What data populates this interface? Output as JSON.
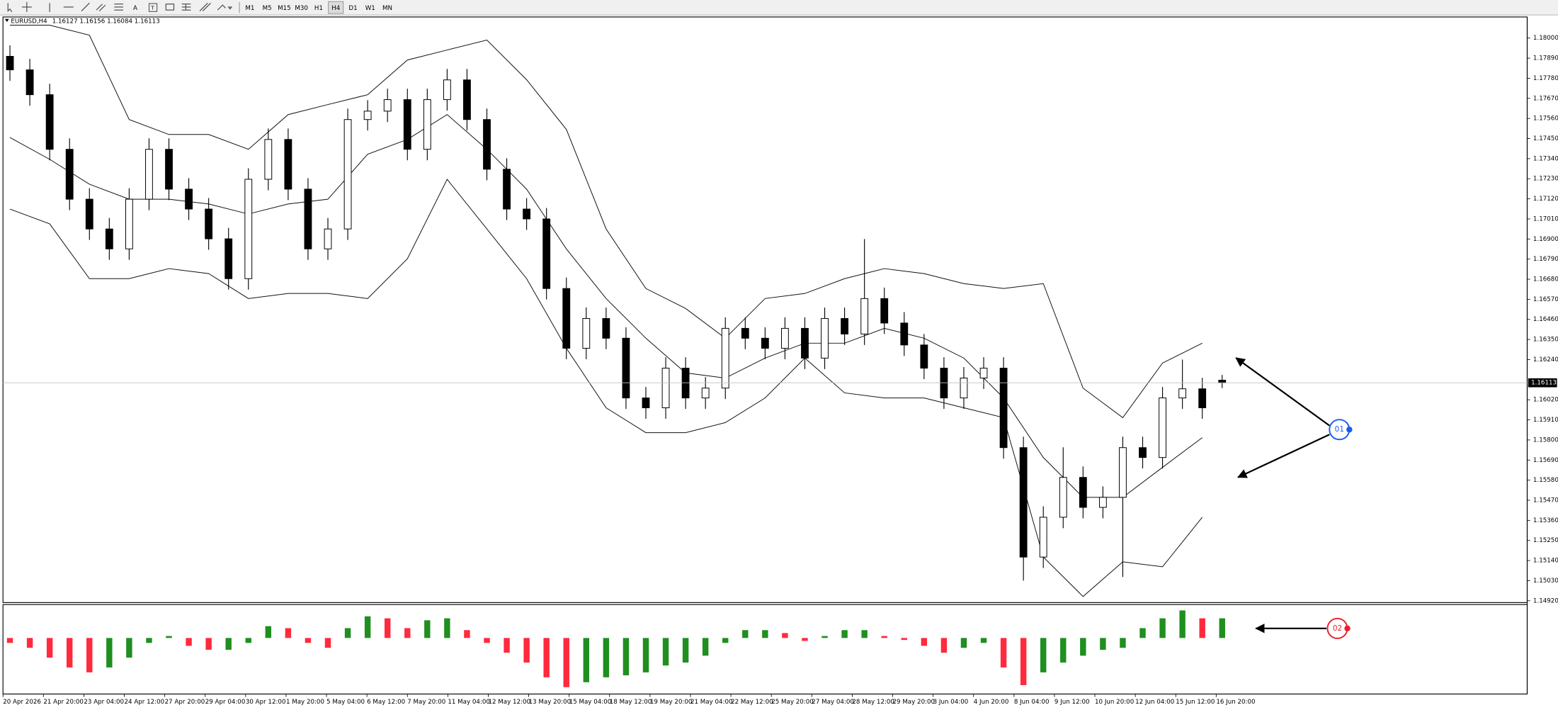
{
  "toolbar": {
    "timeframes": [
      "M1",
      "M5",
      "M15",
      "M30",
      "H1",
      "H4",
      "D1",
      "W1",
      "MN"
    ],
    "active": "H4"
  },
  "chart_data": [
    {
      "type": "candlestick",
      "title": "EURUSD,H4",
      "open": [
        1.179,
        1.17826,
        1.1769,
        1.17391,
        1.17118,
        1.16955,
        1.16846,
        1.17118,
        1.17391,
        1.17173,
        1.17064,
        1.16901,
        1.16683,
        1.17227,
        1.17445,
        1.17173,
        1.16846,
        1.16955,
        1.17554,
        1.176,
        1.17663,
        1.17391,
        1.17663,
        1.17771,
        1.17554,
        1.17282,
        1.17064,
        1.1701,
        1.16629,
        1.16302,
        1.16465,
        1.16357,
        1.1603,
        1.15976,
        1.16193,
        1.1603,
        1.16084,
        1.16411,
        1.16357,
        1.16302,
        1.16411,
        1.16248,
        1.16465,
        1.1638,
        1.16574,
        1.1644,
        1.1632,
        1.16193,
        1.1603,
        1.16139,
        1.16193,
        1.15758,
        1.15159,
        1.15377,
        1.15595,
        1.15431,
        1.15486,
        1.15758,
        1.15704,
        1.1603,
        1.1608,
        1.16127
      ],
      "high": [
        1.1796,
        1.17886,
        1.1775,
        1.17451,
        1.17178,
        1.17015,
        1.17178,
        1.17451,
        1.17451,
        1.17233,
        1.17124,
        1.16961,
        1.17287,
        1.17505,
        1.17505,
        1.17233,
        1.17015,
        1.17614,
        1.1766,
        1.17723,
        1.17723,
        1.17723,
        1.17831,
        1.17831,
        1.17614,
        1.17342,
        1.17124,
        1.1707,
        1.16689,
        1.16525,
        1.16525,
        1.16417,
        1.1609,
        1.16253,
        1.16253,
        1.16144,
        1.16471,
        1.16471,
        1.16417,
        1.16471,
        1.16471,
        1.16525,
        1.16525,
        1.169,
        1.16634,
        1.165,
        1.1638,
        1.16253,
        1.16199,
        1.16253,
        1.16253,
        1.15818,
        1.15437,
        1.1576,
        1.15655,
        1.15546,
        1.15818,
        1.15818,
        1.1609,
        1.1624,
        1.1614,
        1.16156
      ],
      "low": [
        1.17766,
        1.1763,
        1.17331,
        1.17058,
        1.16895,
        1.16786,
        1.16786,
        1.17058,
        1.17113,
        1.17004,
        1.16841,
        1.16623,
        1.16623,
        1.17167,
        1.17113,
        1.16786,
        1.16786,
        1.16895,
        1.17494,
        1.1754,
        1.17331,
        1.17331,
        1.17603,
        1.17494,
        1.17222,
        1.17004,
        1.1695,
        1.16569,
        1.16242,
        1.16242,
        1.16297,
        1.1597,
        1.15916,
        1.15916,
        1.1597,
        1.1597,
        1.16024,
        1.16297,
        1.16242,
        1.16242,
        1.16188,
        1.16188,
        1.1632,
        1.1632,
        1.1638,
        1.1626,
        1.16133,
        1.1597,
        1.1597,
        1.16079,
        1.15698,
        1.1503,
        1.15099,
        1.15317,
        1.15371,
        1.15371,
        1.1505,
        1.15644,
        1.15644,
        1.1597,
        1.15916,
        1.16084
      ],
      "close": [
        1.17826,
        1.1769,
        1.17391,
        1.17118,
        1.16955,
        1.16846,
        1.17118,
        1.17391,
        1.17173,
        1.17064,
        1.16901,
        1.16683,
        1.17227,
        1.17445,
        1.17173,
        1.16846,
        1.16955,
        1.17554,
        1.176,
        1.17663,
        1.17391,
        1.17663,
        1.17771,
        1.17554,
        1.17282,
        1.17064,
        1.1701,
        1.16629,
        1.16302,
        1.16465,
        1.16357,
        1.1603,
        1.15976,
        1.16193,
        1.1603,
        1.16084,
        1.16411,
        1.16357,
        1.16302,
        1.16411,
        1.16248,
        1.16465,
        1.1638,
        1.16574,
        1.1644,
        1.1632,
        1.16193,
        1.1603,
        1.16139,
        1.16193,
        1.15758,
        1.15159,
        1.15377,
        1.15595,
        1.15431,
        1.15486,
        1.15758,
        1.15704,
        1.1603,
        1.1608,
        1.15976,
        1.16113
      ],
      "bands": {
        "upper": [
          1.18071,
          1.18071,
          1.18016,
          1.17554,
          1.17472,
          1.17472,
          1.17391,
          1.17581,
          1.17636,
          1.1769,
          1.1788,
          1.17935,
          1.17989,
          1.17772,
          1.175,
          1.16955,
          1.16629,
          1.1652,
          1.16357,
          1.16574,
          1.16602,
          1.16683,
          1.16738,
          1.16711,
          1.16656,
          1.16629,
          1.16656,
          1.16084,
          1.15922,
          1.16221,
          1.1633
        ],
        "middle": [
          1.17456,
          1.17336,
          1.172,
          1.17118,
          1.17118,
          1.17092,
          1.17037,
          1.17092,
          1.17118,
          1.17364,
          1.17445,
          1.17581,
          1.17391,
          1.17173,
          1.16846,
          1.16574,
          1.16357,
          1.16167,
          1.16139,
          1.16248,
          1.1633,
          1.1633,
          1.16411,
          1.16357,
          1.16248,
          1.1603,
          1.15704,
          1.15486,
          1.15486,
          1.1565,
          1.15813
        ],
        "lower": [
          1.17064,
          1.16983,
          1.16683,
          1.16683,
          1.16738,
          1.16711,
          1.16574,
          1.16602,
          1.16602,
          1.16574,
          1.16792,
          1.17227,
          1.16955,
          1.16683,
          1.16302,
          1.15976,
          1.1584,
          1.1584,
          1.15895,
          1.1603,
          1.16248,
          1.16058,
          1.1603,
          1.1603,
          1.15976,
          1.15922,
          1.15159,
          1.14943,
          1.15133,
          1.15106,
          1.15377
        ]
      },
      "ylim": [
        1.1491,
        1.1811
      ],
      "yticks": [
        {
          "value": 1.18,
          "label": "1.18000"
        },
        {
          "value": 1.1789,
          "label": "1.17890"
        },
        {
          "value": 1.1778,
          "label": "1.17780"
        },
        {
          "value": 1.1767,
          "label": "1.17670"
        },
        {
          "value": 1.1756,
          "label": "1.17560"
        },
        {
          "value": 1.1745,
          "label": "1.17450"
        },
        {
          "value": 1.1734,
          "label": "1.17340"
        },
        {
          "value": 1.1723,
          "label": "1.17230"
        },
        {
          "value": 1.1712,
          "label": "1.17120"
        },
        {
          "value": 1.1701,
          "label": "1.17010"
        },
        {
          "value": 1.169,
          "label": "1.16900"
        },
        {
          "value": 1.1679,
          "label": "1.16790"
        },
        {
          "value": 1.1668,
          "label": "1.16680"
        },
        {
          "value": 1.1657,
          "label": "1.16570"
        },
        {
          "value": 1.1646,
          "label": "1.16460"
        },
        {
          "value": 1.1635,
          "label": "1.16350"
        },
        {
          "value": 1.1624,
          "label": "1.16240"
        },
        {
          "value": 1.1602,
          "label": "1.16020"
        },
        {
          "value": 1.1591,
          "label": "1.15910"
        },
        {
          "value": 1.158,
          "label": "1.15800"
        },
        {
          "value": 1.1569,
          "label": "1.15690"
        },
        {
          "value": 1.1558,
          "label": "1.15580"
        },
        {
          "value": 1.1547,
          "label": "1.15470"
        },
        {
          "value": 1.1536,
          "label": "1.15360"
        },
        {
          "value": 1.1525,
          "label": "1.15250"
        },
        {
          "value": 1.1514,
          "label": "1.15140"
        },
        {
          "value": 1.1503,
          "label": "1.15030"
        },
        {
          "value": 1.1492,
          "label": "1.14920"
        }
      ],
      "x_labels": [
        "20 Apr 2026",
        "21 Apr 20:00",
        "23 Apr 04:00",
        "24 Apr 12:00",
        "27 Apr 20:00",
        "29 Apr 04:00",
        "30 Apr 12:00",
        "1 May 20:00",
        "5 May 04:00",
        "6 May 12:00",
        "7 May 20:00",
        "11 May 04:00",
        "12 May 12:00",
        "13 May 20:00",
        "15 May 04:00",
        "18 May 12:00",
        "19 May 20:00",
        "21 May 04:00",
        "22 May 12:00",
        "25 May 20:00",
        "27 May 04:00",
        "28 May 12:00",
        "29 May 20:00",
        "3 Jun 04:00",
        "4 Jun 20:00",
        "8 Jun 04:00",
        "9 Jun 12:00",
        "10 Jun 20:00",
        "12 Jun 04:00",
        "15 Jun 12:00",
        "16 Jun 20:00"
      ],
      "annotations": [
        {
          "label": "01",
          "color": "#1a5cf0"
        },
        {
          "label": "02",
          "color": "#e8202e"
        }
      ]
    },
    {
      "type": "bar",
      "values": [
        -0.0005,
        -0.001,
        -0.002,
        -0.003,
        -0.0035,
        -0.003,
        -0.002,
        -0.0005,
        0.0002,
        -0.0008,
        -0.0012,
        -0.0012,
        -0.0005,
        0.0012,
        0.001,
        -0.0005,
        -0.001,
        0.001,
        0.0022,
        0.002,
        0.001,
        0.0018,
        0.002,
        0.0008,
        -0.0005,
        -0.0015,
        -0.0025,
        -0.004,
        -0.005,
        -0.0045,
        -0.004,
        -0.0038,
        -0.0035,
        -0.0028,
        -0.0025,
        -0.0018,
        -0.0005,
        0.0008,
        0.0008,
        0.0005,
        -0.0003,
        0.0002,
        0.0008,
        0.0008,
        0.0002,
        -0.0002,
        -0.0008,
        -0.0015,
        -0.001,
        -0.0005,
        -0.003,
        -0.0048,
        -0.0035,
        -0.0025,
        -0.0018,
        -0.0012,
        -0.001,
        0.001,
        0.002,
        0.0028,
        0.002,
        0.002
      ],
      "ylim": [
        -0.0056,
        0.0033
      ],
      "up_color": "#1f8f1f",
      "down_color": "#ff2a3c"
    }
  ]
}
